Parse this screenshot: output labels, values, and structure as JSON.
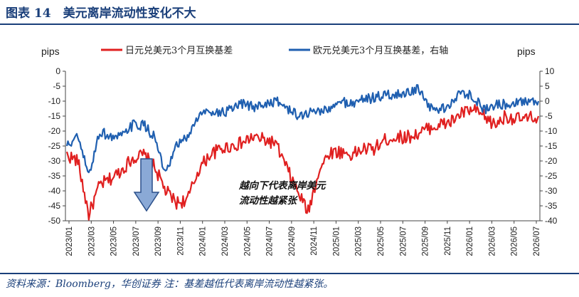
{
  "header": {
    "title": "图表 14　美元离岸流动性变化不大"
  },
  "footer": {
    "source": "资料来源：Bloomberg，华创证券 注：基差越低代表离岸流动性越紧张。"
  },
  "colors": {
    "usdjpy": "#e02020",
    "eurusd": "#1f5fb0",
    "arrow_fill": "#8aa9d6",
    "arrow_stroke": "#2a4f8a",
    "title": "#1a3f7a"
  },
  "chart_data": {
    "type": "line",
    "ylabel_left": "pips",
    "ylabel_right": "pips",
    "ylim_left": [
      -50,
      0
    ],
    "ylim_right": [
      -40,
      10
    ],
    "yticks_left": [
      "0",
      "-5",
      "-10",
      "-15",
      "-20",
      "-25",
      "-30",
      "-35",
      "-40",
      "-45",
      "-50"
    ],
    "yticks_right": [
      "10",
      "5",
      "0",
      "-5",
      "-10",
      "-15",
      "-20",
      "-25",
      "-30",
      "-35",
      "-40"
    ],
    "xtick_labels": [
      "2023/01",
      "2023/03",
      "2023/05",
      "2023/07",
      "2023/09",
      "2023/11",
      "2024/01",
      "2024/03",
      "2024/05",
      "2024/07",
      "2024/09",
      "2024/11",
      "2025/01",
      "2025/03",
      "2025/05",
      "2025/07",
      "2025/09",
      "2025/11",
      "2026/01",
      "2026/03",
      "2026/05",
      "2026/07"
    ],
    "grid": false,
    "legend_position": "top",
    "annotation": [
      "越向下代表离岸美元",
      "流动性越紧张"
    ],
    "series": [
      {
        "name": "日元兑美元3个月互换基差",
        "axis": "left",
        "x": [
          "2023/01",
          "2023/02",
          "2023/03",
          "2023/04",
          "2023/05",
          "2023/06",
          "2023/07",
          "2023/08",
          "2023/09",
          "2023/10",
          "2023/11",
          "2023/12",
          "2024/01",
          "2024/02",
          "2024/03",
          "2024/04",
          "2024/05",
          "2024/06",
          "2024/07",
          "2024/08",
          "2024/09",
          "2024/10",
          "2024/11",
          "2024/12",
          "2025/01",
          "2025/02",
          "2025/03",
          "2025/04",
          "2025/05",
          "2025/06",
          "2025/07",
          "2025/08",
          "2025/09",
          "2025/10",
          "2025/11",
          "2025/12",
          "2026/01",
          "2026/02",
          "2026/03",
          "2026/04",
          "2026/05",
          "2026/06",
          "2026/07",
          "2026/08"
        ],
        "values": [
          -28,
          -30,
          -48,
          -38,
          -36,
          -33,
          -29,
          -28,
          -32,
          -40,
          -44,
          -43,
          -33,
          -28,
          -26,
          -25,
          -24,
          -22,
          -23,
          -24,
          -32,
          -40,
          -47,
          -33,
          -27,
          -27,
          -28,
          -26,
          -26,
          -23,
          -22,
          -22,
          -21,
          -19,
          -18,
          -17,
          -14,
          -13,
          -15,
          -18,
          -15,
          -16,
          -16,
          -15
        ]
      },
      {
        "name": "欧元兑美元3个月互换基差，右轴",
        "axis": "right",
        "x": [
          "2023/01",
          "2023/02",
          "2023/03",
          "2023/04",
          "2023/05",
          "2023/06",
          "2023/07",
          "2023/08",
          "2023/09",
          "2023/10",
          "2023/11",
          "2023/12",
          "2024/01",
          "2024/02",
          "2024/03",
          "2024/04",
          "2024/05",
          "2024/06",
          "2024/07",
          "2024/08",
          "2024/09",
          "2024/10",
          "2024/11",
          "2024/12",
          "2025/01",
          "2025/02",
          "2025/03",
          "2025/04",
          "2025/05",
          "2025/06",
          "2025/07",
          "2025/08",
          "2025/09",
          "2025/10",
          "2025/11",
          "2025/12",
          "2026/01",
          "2026/02",
          "2026/03",
          "2026/04",
          "2026/05",
          "2026/06",
          "2026/07",
          "2026/08"
        ],
        "values": [
          -15,
          -12,
          -25,
          -10,
          -12,
          -12,
          -8,
          -8,
          -12,
          -25,
          -15,
          -12,
          -5,
          -3,
          -4,
          -3,
          -1,
          -2,
          -1,
          0,
          -2,
          -5,
          -4,
          -3,
          -3,
          0,
          -1,
          1,
          1,
          2,
          2,
          3,
          4,
          -2,
          -3,
          -1,
          3,
          2,
          -3,
          -1,
          -1,
          0,
          0,
          0
        ]
      }
    ]
  }
}
